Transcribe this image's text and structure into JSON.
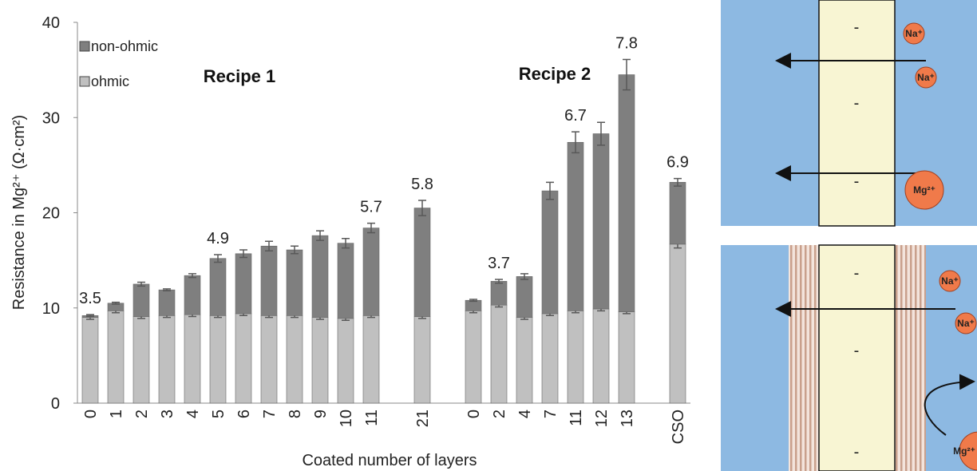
{
  "chart_data": {
    "type": "stacked_bar",
    "xlabel": "Coated number of layers",
    "ylabel": "Resistance in Mg²⁺ (Ω·cm²)",
    "categories": [
      "0",
      "1",
      "2",
      "3",
      "4",
      "5",
      "6",
      "7",
      "8",
      "9",
      "10",
      "11",
      null,
      "21",
      null,
      "0",
      "2",
      "4",
      "7",
      "11",
      "12",
      "13",
      null,
      "CSO"
    ],
    "series": [
      {
        "name": "ohmic",
        "color": "#c0c0c0",
        "values": [
          9.0,
          9.7,
          9.1,
          9.2,
          9.3,
          9.2,
          9.4,
          9.2,
          9.2,
          9.0,
          8.9,
          9.2,
          null,
          9.1,
          null,
          9.7,
          10.3,
          9.0,
          9.4,
          9.7,
          9.9,
          9.6,
          null,
          16.7
        ],
        "errors": [
          0.2,
          0.2,
          0.2,
          0.2,
          0.2,
          0.2,
          0.2,
          0.2,
          0.2,
          0.2,
          0.2,
          0.2,
          null,
          0.2,
          null,
          0.2,
          0.2,
          0.2,
          0.2,
          0.2,
          0.2,
          0.2,
          null,
          0.4
        ]
      },
      {
        "name": "non-ohmic",
        "color": "#7f7f7f",
        "values": [
          0.2,
          0.8,
          3.4,
          2.7,
          4.1,
          6.0,
          6.3,
          7.3,
          6.9,
          8.6,
          7.9,
          9.2,
          null,
          11.4,
          null,
          1.1,
          2.5,
          4.3,
          12.9,
          17.7,
          18.4,
          24.9,
          null,
          6.5
        ],
        "errors": [
          0.1,
          0.1,
          0.2,
          0.1,
          0.2,
          0.4,
          0.4,
          0.5,
          0.4,
          0.5,
          0.5,
          0.5,
          null,
          0.8,
          null,
          0.1,
          0.2,
          0.3,
          0.9,
          1.1,
          1.2,
          1.6,
          null,
          0.4
        ]
      }
    ],
    "top_labels": [
      3.5,
      null,
      null,
      null,
      null,
      4.9,
      null,
      null,
      null,
      null,
      null,
      5.7,
      null,
      5.8,
      null,
      null,
      3.7,
      null,
      null,
      6.7,
      null,
      7.8,
      null,
      6.9
    ],
    "annotations": [
      "Recipe 1",
      "Recipe 2"
    ],
    "ylim": [
      0,
      40
    ],
    "yticks": [
      0,
      10,
      20,
      30,
      40
    ],
    "grid": false
  },
  "diagram": {
    "top": {
      "charges": [
        "-",
        "-",
        "-"
      ],
      "ions": [
        "Na⁺",
        "Na⁺",
        "Mg²⁺"
      ]
    },
    "bottom": {
      "charges": [
        "-",
        "-",
        "-"
      ],
      "ions": [
        "Na⁺",
        "Na⁺",
        "Mg²⁺"
      ]
    }
  }
}
